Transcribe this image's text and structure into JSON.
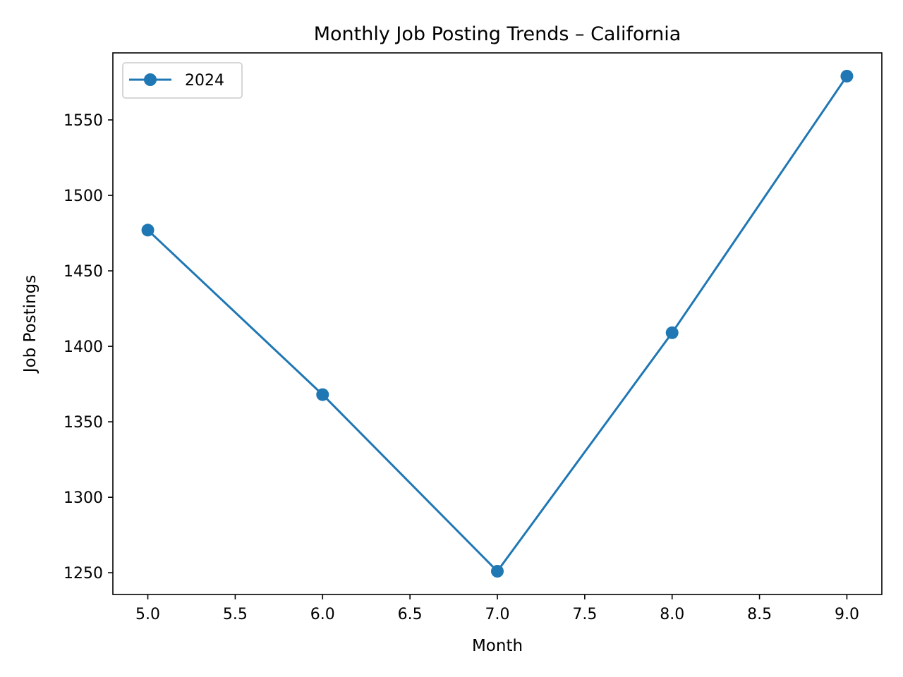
{
  "chart_data": {
    "type": "line",
    "title": "Monthly Job Posting Trends – California",
    "xlabel": "Month",
    "ylabel": "Job Postings",
    "x": [
      5,
      6,
      7,
      8,
      9
    ],
    "series": [
      {
        "name": "2024",
        "values": [
          1477,
          1368,
          1251,
          1409,
          1579
        ],
        "color": "#1f77b4",
        "marker": "circle"
      }
    ],
    "xlim": [
      4.8,
      9.2
    ],
    "ylim": [
      1235.6,
      1594.4
    ],
    "x_ticks": [
      5.0,
      5.5,
      6.0,
      6.5,
      7.0,
      7.5,
      8.0,
      8.5,
      9.0
    ],
    "x_tick_labels": [
      "5.0",
      "5.5",
      "6.0",
      "6.5",
      "7.0",
      "7.5",
      "8.0",
      "8.5",
      "9.0"
    ],
    "y_ticks": [
      1250,
      1300,
      1350,
      1400,
      1450,
      1500,
      1550
    ],
    "y_tick_labels": [
      "1250",
      "1300",
      "1350",
      "1400",
      "1450",
      "1500",
      "1550"
    ],
    "grid": false,
    "legend_position": "top-left"
  }
}
